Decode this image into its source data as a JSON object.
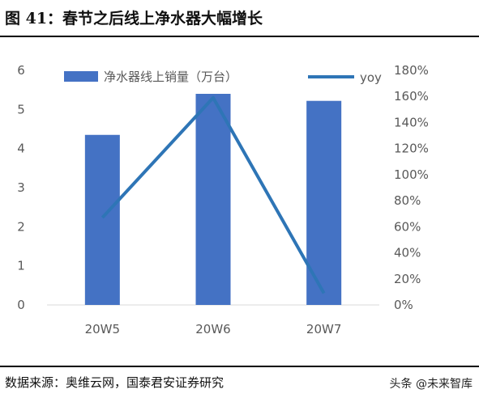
{
  "figure": {
    "title": "图 41：春节之后线上净水器大幅增长",
    "source": "数据来源：奥维云网，国泰君安证券研究",
    "watermark": "头条 @未来智库"
  },
  "colors": {
    "bar": "#4472C4",
    "line": "#2E75B6",
    "axis_text": "#595959",
    "axis_line": "#D9D9D9"
  },
  "chart_data": {
    "type": "bar",
    "categories": [
      "20W5",
      "20W6",
      "20W7"
    ],
    "series": [
      {
        "name": "净水器线上销量（万台）",
        "type": "bar",
        "axis": "left",
        "values": [
          4.35,
          5.4,
          5.22
        ]
      },
      {
        "name": "yoy",
        "type": "line",
        "axis": "right",
        "values": [
          0.67,
          1.59,
          0.09
        ]
      }
    ],
    "y_left": {
      "min": 0,
      "max": 6,
      "ticks": [
        "0",
        "1",
        "2",
        "3",
        "4",
        "5",
        "6"
      ]
    },
    "y_right": {
      "min": 0,
      "max": 1.8,
      "ticks": [
        "0%",
        "20%",
        "40%",
        "60%",
        "80%",
        "100%",
        "120%",
        "140%",
        "160%",
        "180%"
      ]
    },
    "legend_position": "top",
    "grid": false
  }
}
